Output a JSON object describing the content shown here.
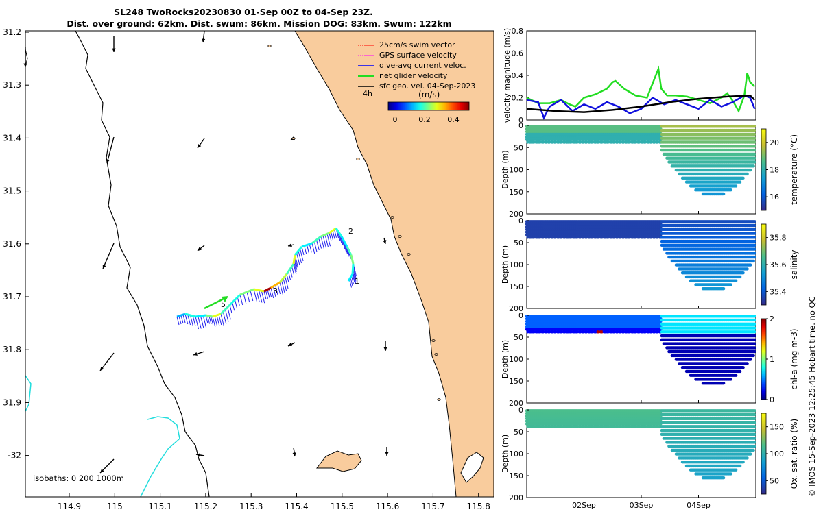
{
  "header": {
    "title_line1": "SL248 TwoRocks20230830 01-Sep 00Z to 04-Sep 23Z.",
    "title_line2": "Dist. over ground: 62km. Dist. swum: 86km. Mission DOG: 83km. Swum: 122km"
  },
  "credit": "© IMOS 15-Sep-2023 12:25:45 Hobart time. no QC",
  "map": {
    "legend": [
      {
        "label": "25cm/s swim vector",
        "color": "#ff0000"
      },
      {
        "label": "GPS surface velocity",
        "color": "#ff00ff"
      },
      {
        "label": "dive-avg current veloc.",
        "color": "#0000ff"
      },
      {
        "label": "net glider velocity",
        "color": "#00dd00"
      },
      {
        "label": "sfc geo. vel. 04-Sep-2023",
        "color": "#000000"
      }
    ],
    "scale_label": "4h",
    "colorbar_title": "(m/s)",
    "colorbar_ticks": [
      "0",
      "0.2",
      "0.4"
    ],
    "isobath_note": "isobaths: 0   200  1000m",
    "lon_ticks": [
      "114.9",
      "115",
      "115.1",
      "115.2",
      "115.3",
      "115.4",
      "115.5",
      "115.6",
      "115.7",
      "115.8"
    ],
    "lat_ticks": [
      "31.2",
      "31.3",
      "31.4",
      "31.5",
      "31.6",
      "31.7",
      "31.8",
      "31.9",
      "-32"
    ],
    "waypoint_labels": [
      "1",
      "2",
      "3",
      "5"
    ],
    "land_color": "#f9cc9d"
  },
  "chart_data": [
    {
      "type": "line",
      "title": "",
      "ylabel": "velocity magnitude (m/s)",
      "ylim": [
        0,
        0.8
      ],
      "yticks": [
        "0",
        "0.2",
        "0.4",
        "0.6",
        "0.8"
      ],
      "x_days": [
        1,
        5
      ],
      "series": [
        {
          "name": "net glider velocity",
          "color": "#22dd22",
          "x": [
            1.0,
            1.2,
            1.4,
            1.6,
            1.75,
            1.85,
            2.0,
            2.2,
            2.4,
            2.5,
            2.55,
            2.7,
            2.9,
            3.1,
            3.3,
            3.35,
            3.45,
            3.6,
            3.8,
            4.0,
            4.2,
            4.4,
            4.5,
            4.6,
            4.7,
            4.8,
            4.85,
            4.9,
            4.98
          ],
          "y": [
            0.2,
            0.15,
            0.15,
            0.18,
            0.14,
            0.12,
            0.2,
            0.23,
            0.28,
            0.34,
            0.35,
            0.28,
            0.22,
            0.2,
            0.46,
            0.28,
            0.22,
            0.22,
            0.21,
            0.18,
            0.15,
            0.2,
            0.24,
            0.17,
            0.08,
            0.22,
            0.42,
            0.34,
            0.3
          ]
        },
        {
          "name": "dive-avg current veloc.",
          "color": "#1010dd",
          "x": [
            1.0,
            1.2,
            1.3,
            1.4,
            1.6,
            1.8,
            2.0,
            2.2,
            2.4,
            2.6,
            2.8,
            3.0,
            3.2,
            3.4,
            3.6,
            3.8,
            4.0,
            4.2,
            4.4,
            4.6,
            4.8,
            4.9,
            4.98
          ],
          "y": [
            0.18,
            0.16,
            0.02,
            0.12,
            0.18,
            0.08,
            0.14,
            0.1,
            0.16,
            0.12,
            0.06,
            0.1,
            0.2,
            0.14,
            0.18,
            0.14,
            0.1,
            0.18,
            0.12,
            0.16,
            0.22,
            0.2,
            0.1
          ]
        },
        {
          "name": "sfc geo. vel.",
          "color": "#000000",
          "x": [
            1.0,
            1.5,
            2.0,
            2.5,
            3.0,
            3.5,
            4.0,
            4.5,
            4.9,
            4.98
          ],
          "y": [
            0.1,
            0.08,
            0.07,
            0.09,
            0.12,
            0.16,
            0.19,
            0.21,
            0.22,
            0.18
          ]
        }
      ]
    },
    {
      "type": "scatter",
      "ylabel": "Depth (m)",
      "cbar_label": "temperature (°C)",
      "cbar_ticks": [
        "16",
        "18",
        "20"
      ],
      "cbar_range": [
        15,
        21
      ],
      "ylim": [
        0,
        200
      ],
      "yticks": [
        "0",
        "50",
        "100",
        "150",
        "200"
      ],
      "variable": "temperature"
    },
    {
      "type": "scatter",
      "ylabel": "Depth (m)",
      "cbar_label": "salinity",
      "cbar_ticks": [
        "35.4",
        "35.6",
        "35.8"
      ],
      "cbar_range": [
        35.3,
        35.9
      ],
      "ylim": [
        0,
        200
      ],
      "yticks": [
        "0",
        "50",
        "100",
        "150",
        "200"
      ],
      "variable": "salinity"
    },
    {
      "type": "scatter",
      "ylabel": "Depth (m)",
      "cbar_label": "chl-a (mg m-3)",
      "cbar_ticks": [
        "0",
        "1",
        "2"
      ],
      "cbar_range": [
        0,
        2
      ],
      "ylim": [
        0,
        200
      ],
      "yticks": [
        "0",
        "50",
        "100",
        "150",
        "200"
      ],
      "variable": "chla"
    },
    {
      "type": "scatter",
      "ylabel": "Depth (m)",
      "cbar_label": "Ox. sat. ratio (%)",
      "cbar_ticks": [
        "50",
        "100",
        "150"
      ],
      "cbar_range": [
        25,
        175
      ],
      "ylim": [
        0,
        200
      ],
      "yticks": [
        "0",
        "50",
        "100",
        "150",
        "200"
      ],
      "variable": "oxygen"
    }
  ],
  "time_ticks": [
    "02Sep",
    "03Sep",
    "04Sep"
  ]
}
